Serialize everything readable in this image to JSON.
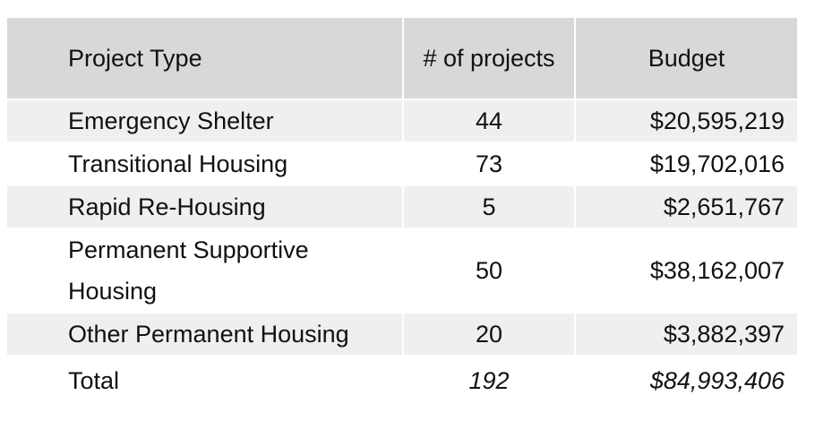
{
  "table": {
    "headers": {
      "project_type": "Project Type",
      "num_projects": "# of projects",
      "budget": "Budget"
    },
    "rows": [
      {
        "project_type": "Emergency Shelter",
        "num_projects": "44",
        "budget": "$20,595,219"
      },
      {
        "project_type": "Transitional Housing",
        "num_projects": "73",
        "budget": "$19,702,016"
      },
      {
        "project_type": "Rapid Re-Housing",
        "num_projects": "5",
        "budget": "$2,651,767"
      },
      {
        "project_type": "Permanent Supportive Housing",
        "num_projects": "50",
        "budget": "$38,162,007"
      },
      {
        "project_type": "Other Permanent Housing",
        "num_projects": "20",
        "budget": "$3,882,397"
      }
    ],
    "total": {
      "label": "Total",
      "num_projects": "192",
      "budget": "$84,993,406"
    }
  },
  "colors": {
    "header_bg": "#d8d8d8",
    "shaded_row_bg": "#efefef",
    "plain_row_bg": "#ffffff",
    "text": "#111111"
  }
}
